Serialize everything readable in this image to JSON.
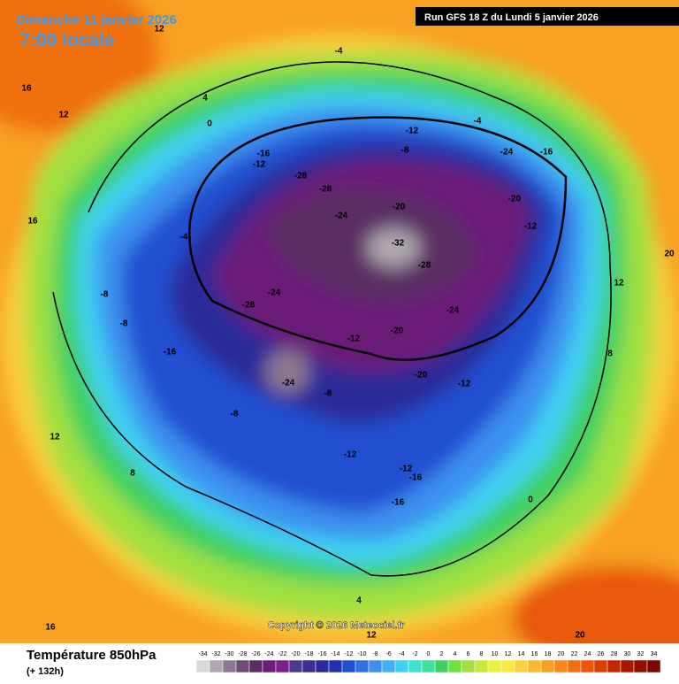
{
  "header": {
    "date": "Dimanche 11 janvier 2026",
    "time": "7:00 locale",
    "run": "Run GFS 18 Z du Lundi 5 janvier 2026"
  },
  "copyright": "Copyright © 2026 Meteociel.fr",
  "legend": {
    "title": "Température 850hPa",
    "subtitle": "(+ 132h)",
    "scale": [
      -34,
      -32,
      -30,
      -28,
      -26,
      -24,
      -22,
      -20,
      -18,
      -16,
      -14,
      -12,
      -10,
      -8,
      -6,
      -4,
      -2,
      0,
      2,
      4,
      6,
      8,
      10,
      12,
      14,
      16,
      18,
      20,
      22,
      24,
      26,
      28,
      30,
      32,
      34
    ],
    "colors": [
      "#d8d8d8",
      "#b0a8b0",
      "#8c7890",
      "#6e4c74",
      "#5a2d64",
      "#6a1e78",
      "#7e1e8c",
      "#4a3a8a",
      "#3a3090",
      "#2a2a9a",
      "#2030b0",
      "#2050d0",
      "#3070e0",
      "#3e90f0",
      "#40b0f0",
      "#40d0f0",
      "#40e0d0",
      "#40e0a0",
      "#40d060",
      "#70e040",
      "#a0e040",
      "#c8e840",
      "#e8f040",
      "#f8e840",
      "#f8d040",
      "#f8b830",
      "#f8a020",
      "#f88818",
      "#f07010",
      "#e85808",
      "#d84000",
      "#c02800",
      "#a81800",
      "#901000",
      "#780800"
    ]
  },
  "map": {
    "labels": [
      12,
      16,
      12,
      0,
      -4,
      -12,
      -8,
      -16,
      -28,
      -28,
      -24,
      -20,
      -32,
      -28,
      -24,
      -28,
      -24,
      -16,
      -12,
      -20,
      -20,
      -12,
      -8,
      -8,
      -8,
      -12,
      -16,
      -12,
      -24,
      -20,
      -16,
      -12,
      -4,
      4,
      8,
      12,
      16,
      20,
      12,
      8,
      0,
      4,
      12,
      20,
      16,
      -4,
      -12,
      -8,
      -24,
      -16
    ]
  }
}
